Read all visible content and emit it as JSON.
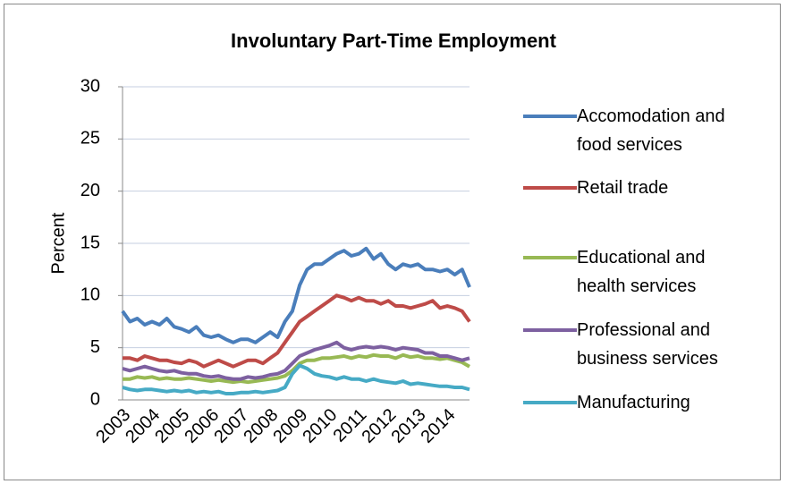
{
  "chart_data": {
    "type": "line",
    "title": "Involuntary Part-Time Employment",
    "y_label": "Percent",
    "categories": [
      "2003",
      null,
      null,
      null,
      "2004",
      null,
      null,
      null,
      "2005",
      null,
      null,
      null,
      "2006",
      null,
      null,
      null,
      "2007",
      null,
      null,
      null,
      "2008",
      null,
      null,
      null,
      "2009",
      null,
      null,
      null,
      "2010",
      null,
      null,
      null,
      "2011",
      null,
      null,
      null,
      "2012",
      null,
      null,
      null,
      "2013",
      null,
      null,
      null,
      "2014",
      null,
      null,
      null
    ],
    "series": [
      {
        "name": "Accomodation and food services",
        "color": "#4a7ebb",
        "values": [
          8.5,
          7.5,
          7.8,
          7.2,
          7.5,
          7.2,
          7.8,
          7.0,
          6.8,
          6.5,
          7.0,
          6.2,
          6.0,
          6.2,
          5.8,
          5.5,
          5.8,
          5.8,
          5.5,
          6.0,
          6.5,
          6.0,
          7.5,
          8.5,
          11,
          12.5,
          13,
          13,
          13.5,
          14,
          14.3,
          13.8,
          14,
          14.5,
          13.5,
          14,
          13,
          12.5,
          13,
          12.8,
          13,
          12.5,
          12.5,
          12.3,
          12.5,
          12,
          12.5,
          10.8
        ]
      },
      {
        "name": "Retail trade",
        "color": "#be4b48",
        "values": [
          4,
          4,
          3.8,
          4.2,
          4,
          3.8,
          3.8,
          3.6,
          3.5,
          3.8,
          3.6,
          3.2,
          3.5,
          3.8,
          3.5,
          3.2,
          3.5,
          3.8,
          3.8,
          3.5,
          4,
          4.5,
          5.5,
          6.5,
          7.5,
          8,
          8.5,
          9,
          9.5,
          10,
          9.8,
          9.5,
          9.8,
          9.5,
          9.5,
          9.2,
          9.5,
          9,
          9,
          8.8,
          9,
          9.2,
          9.5,
          8.8,
          9,
          8.8,
          8.5,
          7.5
        ]
      },
      {
        "name": "Educational and health services",
        "color": "#98b954",
        "values": [
          2,
          2,
          2.2,
          2.1,
          2.2,
          2,
          2.1,
          2,
          2,
          2.1,
          2,
          1.9,
          1.8,
          1.9,
          1.8,
          1.7,
          1.8,
          1.7,
          1.8,
          1.9,
          2,
          2.1,
          2.3,
          2.8,
          3.5,
          3.8,
          3.8,
          4,
          4,
          4.1,
          4.2,
          4,
          4.2,
          4.1,
          4.3,
          4.2,
          4.2,
          4,
          4.3,
          4.1,
          4.2,
          4,
          4,
          3.9,
          4,
          3.8,
          3.6,
          3.2
        ]
      },
      {
        "name": "Professional and business services",
        "color": "#7d60a0",
        "values": [
          3,
          2.8,
          3,
          3.2,
          3,
          2.8,
          2.7,
          2.8,
          2.6,
          2.5,
          2.5,
          2.3,
          2.2,
          2.3,
          2.1,
          2,
          2,
          2.2,
          2.1,
          2.2,
          2.4,
          2.5,
          2.8,
          3.5,
          4.2,
          4.5,
          4.8,
          5,
          5.2,
          5.5,
          5,
          4.8,
          5,
          5.1,
          5,
          5.1,
          5,
          4.8,
          5,
          4.9,
          4.8,
          4.5,
          4.5,
          4.2,
          4.2,
          4,
          3.8,
          4
        ]
      },
      {
        "name": "Manufacturing",
        "color": "#46aac5",
        "values": [
          1.2,
          1,
          0.9,
          1,
          1,
          0.9,
          0.8,
          0.9,
          0.8,
          0.9,
          0.7,
          0.8,
          0.7,
          0.8,
          0.6,
          0.6,
          0.7,
          0.7,
          0.8,
          0.7,
          0.8,
          0.9,
          1.2,
          2.5,
          3.3,
          3,
          2.5,
          2.3,
          2.2,
          2,
          2.2,
          2,
          2,
          1.8,
          2,
          1.8,
          1.7,
          1.6,
          1.8,
          1.5,
          1.6,
          1.5,
          1.4,
          1.3,
          1.3,
          1.2,
          1.2,
          1.0
        ]
      }
    ],
    "ylim": [
      0,
      30
    ],
    "yticks": [
      0,
      5,
      10,
      15,
      20,
      25,
      30
    ],
    "grid": true,
    "legend": "right"
  }
}
